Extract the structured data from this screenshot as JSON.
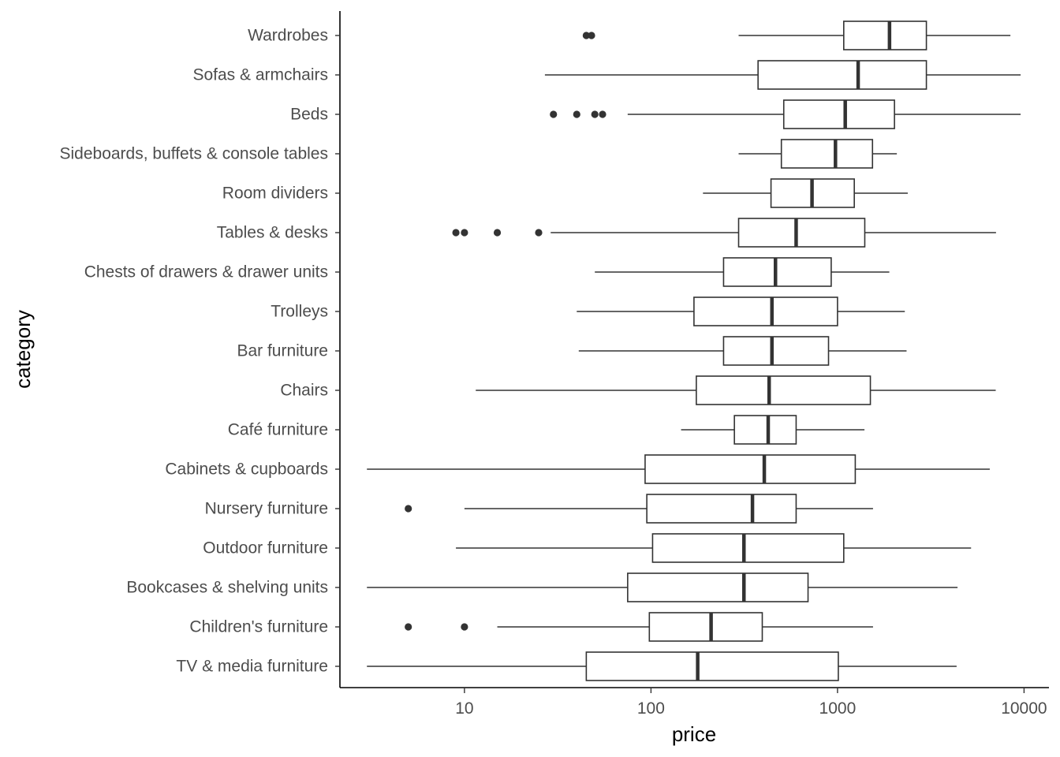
{
  "chart_data": {
    "type": "boxplot",
    "orientation": "horizontal",
    "xlabel": "price",
    "ylabel": "category",
    "x_scale": "log10",
    "xlim": [
      2.15,
      13600
    ],
    "x_ticks": [
      10,
      100,
      1000,
      10000
    ],
    "x_tick_labels": [
      "10",
      "100",
      "1000",
      "10000"
    ],
    "grid": false,
    "categories": [
      "Wardrobes",
      "Sofas & armchairs",
      "Beds",
      "Sideboards, buffets & console tables",
      "Room dividers",
      "Tables & desks",
      "Chests of drawers & drawer units",
      "Trolleys",
      "Bar furniture",
      "Chairs",
      "Café furniture",
      "Cabinets & cupboards",
      "Nursery furniture",
      "Outdoor furniture",
      "Bookcases & shelving units",
      "Children's furniture",
      "TV & media furniture"
    ],
    "boxes": [
      {
        "category": "Wardrobes",
        "whisker_low": 295,
        "q1": 1080,
        "median": 1900,
        "q3": 2995,
        "whisker_high": 8450,
        "outliers": [
          45,
          48
        ]
      },
      {
        "category": "Sofas & armchairs",
        "whisker_low": 27,
        "q1": 375,
        "median": 1290,
        "q3": 2995,
        "whisker_high": 9585,
        "outliers": []
      },
      {
        "category": "Beds",
        "whisker_low": 75,
        "q1": 515,
        "median": 1100,
        "q3": 2020,
        "whisker_high": 9585,
        "outliers": [
          30,
          40,
          50,
          55
        ]
      },
      {
        "category": "Sideboards, buffets & console tables",
        "whisker_low": 295,
        "q1": 500,
        "median": 975,
        "q3": 1540,
        "whisker_high": 2080,
        "outliers": []
      },
      {
        "category": "Room dividers",
        "whisker_low": 190,
        "q1": 440,
        "median": 730,
        "q3": 1230,
        "whisker_high": 2380,
        "outliers": []
      },
      {
        "category": "Tables & desks",
        "whisker_low": 29,
        "q1": 295,
        "median": 600,
        "q3": 1400,
        "whisker_high": 7075,
        "outliers": [
          9,
          10,
          15,
          25
        ]
      },
      {
        "category": "Chests of drawers & drawer units",
        "whisker_low": 50,
        "q1": 245,
        "median": 465,
        "q3": 925,
        "whisker_high": 1895,
        "outliers": []
      },
      {
        "category": "Trolleys",
        "whisker_low": 40,
        "q1": 170,
        "median": 445,
        "q3": 1000,
        "whisker_high": 2295,
        "outliers": []
      },
      {
        "category": "Bar furniture",
        "whisker_low": 41,
        "q1": 245,
        "median": 445,
        "q3": 895,
        "whisker_high": 2345,
        "outliers": []
      },
      {
        "category": "Chairs",
        "whisker_low": 11.5,
        "q1": 175,
        "median": 430,
        "q3": 1500,
        "whisker_high": 7050,
        "outliers": []
      },
      {
        "category": "Café furniture",
        "whisker_low": 145,
        "q1": 280,
        "median": 425,
        "q3": 600,
        "whisker_high": 1395,
        "outliers": []
      },
      {
        "category": "Cabinets & cupboards",
        "whisker_low": 3,
        "q1": 93,
        "median": 405,
        "q3": 1245,
        "whisker_high": 6550,
        "outliers": []
      },
      {
        "category": "Nursery furniture",
        "whisker_low": 10,
        "q1": 95,
        "median": 350,
        "q3": 600,
        "whisker_high": 1550,
        "outliers": [
          5
        ]
      },
      {
        "category": "Outdoor furniture",
        "whisker_low": 9,
        "q1": 102,
        "median": 315,
        "q3": 1080,
        "whisker_high": 5200,
        "outliers": []
      },
      {
        "category": "Bookcases & shelving units",
        "whisker_low": 3,
        "q1": 75,
        "median": 315,
        "q3": 695,
        "whisker_high": 4400,
        "outliers": []
      },
      {
        "category": "Children's furniture",
        "whisker_low": 15,
        "q1": 98,
        "median": 210,
        "q3": 395,
        "whisker_high": 1550,
        "outliers": [
          5,
          10
        ]
      },
      {
        "category": "TV & media furniture",
        "whisker_low": 3,
        "q1": 45,
        "median": 178,
        "q3": 1010,
        "whisker_high": 4350,
        "outliers": []
      }
    ]
  }
}
